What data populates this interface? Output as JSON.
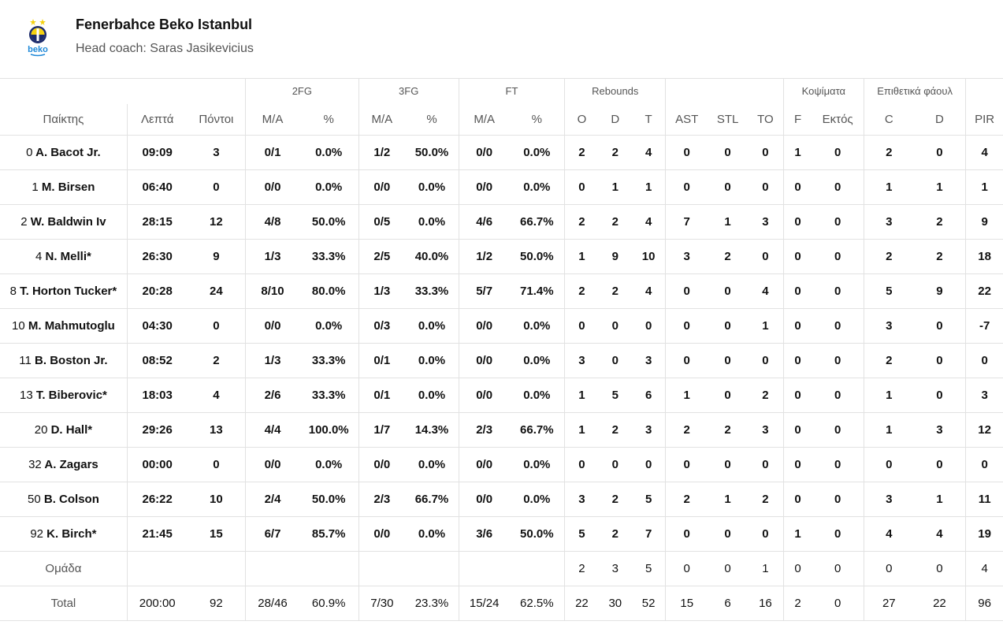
{
  "team": {
    "name": "Fenerbahce Beko Istanbul",
    "coach": "Head coach: Saras Jasikevicius",
    "logo_icon": "fenerbahce-beko-logo",
    "logo_text": "beko",
    "colors": {
      "navy": "#1b2a6b",
      "yellow": "#f5d10f",
      "beko_blue": "#1e88d8"
    }
  },
  "groups": {
    "fg2": "2FG",
    "fg3": "3FG",
    "ft": "FT",
    "rebounds": "Rebounds",
    "blocks": "Κοψίματα",
    "fouls": "Επιθετικά φάουλ"
  },
  "columns": {
    "player": "Παίκτης",
    "minutes": "Λεπτά",
    "points": "Πόντοι",
    "fg2_ma": "M/A",
    "fg2_pct": "%",
    "fg3_ma": "M/A",
    "fg3_pct": "%",
    "ft_ma": "M/A",
    "ft_pct": "%",
    "reb_o": "O",
    "reb_d": "D",
    "reb_t": "T",
    "ast": "AST",
    "stl": "STL",
    "to": "TO",
    "blk_f": "F",
    "blk_ag": "Εκτός",
    "fouls_c": "C",
    "fouls_d": "D",
    "pir": "PIR"
  },
  "rows": [
    {
      "num": "0",
      "name": "A. Bacot Jr.",
      "min": "09:09",
      "pts": "3",
      "fg2_ma": "0/1",
      "fg2_pct": "0.0%",
      "fg3_ma": "1/2",
      "fg3_pct": "50.0%",
      "ft_ma": "0/0",
      "ft_pct": "0.0%",
      "o": "2",
      "d": "2",
      "t": "4",
      "ast": "0",
      "stl": "0",
      "to": "0",
      "bf": "1",
      "ba": "0",
      "fc": "2",
      "fd": "0",
      "pir": "4"
    },
    {
      "num": "1",
      "name": "M. Birsen",
      "min": "06:40",
      "pts": "0",
      "fg2_ma": "0/0",
      "fg2_pct": "0.0%",
      "fg3_ma": "0/0",
      "fg3_pct": "0.0%",
      "ft_ma": "0/0",
      "ft_pct": "0.0%",
      "o": "0",
      "d": "1",
      "t": "1",
      "ast": "0",
      "stl": "0",
      "to": "0",
      "bf": "0",
      "ba": "0",
      "fc": "1",
      "fd": "1",
      "pir": "1"
    },
    {
      "num": "2",
      "name": "W. Baldwin Iv",
      "min": "28:15",
      "pts": "12",
      "fg2_ma": "4/8",
      "fg2_pct": "50.0%",
      "fg3_ma": "0/5",
      "fg3_pct": "0.0%",
      "ft_ma": "4/6",
      "ft_pct": "66.7%",
      "o": "2",
      "d": "2",
      "t": "4",
      "ast": "7",
      "stl": "1",
      "to": "3",
      "bf": "0",
      "ba": "0",
      "fc": "3",
      "fd": "2",
      "pir": "9"
    },
    {
      "num": "4",
      "name": "N. Melli*",
      "min": "26:30",
      "pts": "9",
      "fg2_ma": "1/3",
      "fg2_pct": "33.3%",
      "fg3_ma": "2/5",
      "fg3_pct": "40.0%",
      "ft_ma": "1/2",
      "ft_pct": "50.0%",
      "o": "1",
      "d": "9",
      "t": "10",
      "ast": "3",
      "stl": "2",
      "to": "0",
      "bf": "0",
      "ba": "0",
      "fc": "2",
      "fd": "2",
      "pir": "18"
    },
    {
      "num": "8",
      "name": "T. Horton Tucker*",
      "min": "20:28",
      "pts": "24",
      "fg2_ma": "8/10",
      "fg2_pct": "80.0%",
      "fg3_ma": "1/3",
      "fg3_pct": "33.3%",
      "ft_ma": "5/7",
      "ft_pct": "71.4%",
      "o": "2",
      "d": "2",
      "t": "4",
      "ast": "0",
      "stl": "0",
      "to": "4",
      "bf": "0",
      "ba": "0",
      "fc": "5",
      "fd": "9",
      "pir": "22"
    },
    {
      "num": "10",
      "name": "M. Mahmutoglu",
      "min": "04:30",
      "pts": "0",
      "fg2_ma": "0/0",
      "fg2_pct": "0.0%",
      "fg3_ma": "0/3",
      "fg3_pct": "0.0%",
      "ft_ma": "0/0",
      "ft_pct": "0.0%",
      "o": "0",
      "d": "0",
      "t": "0",
      "ast": "0",
      "stl": "0",
      "to": "1",
      "bf": "0",
      "ba": "0",
      "fc": "3",
      "fd": "0",
      "pir": "-7"
    },
    {
      "num": "11",
      "name": "B. Boston Jr.",
      "min": "08:52",
      "pts": "2",
      "fg2_ma": "1/3",
      "fg2_pct": "33.3%",
      "fg3_ma": "0/1",
      "fg3_pct": "0.0%",
      "ft_ma": "0/0",
      "ft_pct": "0.0%",
      "o": "3",
      "d": "0",
      "t": "3",
      "ast": "0",
      "stl": "0",
      "to": "0",
      "bf": "0",
      "ba": "0",
      "fc": "2",
      "fd": "0",
      "pir": "0"
    },
    {
      "num": "13",
      "name": "T. Biberovic*",
      "min": "18:03",
      "pts": "4",
      "fg2_ma": "2/6",
      "fg2_pct": "33.3%",
      "fg3_ma": "0/1",
      "fg3_pct": "0.0%",
      "ft_ma": "0/0",
      "ft_pct": "0.0%",
      "o": "1",
      "d": "5",
      "t": "6",
      "ast": "1",
      "stl": "0",
      "to": "2",
      "bf": "0",
      "ba": "0",
      "fc": "1",
      "fd": "0",
      "pir": "3"
    },
    {
      "num": "20",
      "name": "D. Hall*",
      "min": "29:26",
      "pts": "13",
      "fg2_ma": "4/4",
      "fg2_pct": "100.0%",
      "fg3_ma": "1/7",
      "fg3_pct": "14.3%",
      "ft_ma": "2/3",
      "ft_pct": "66.7%",
      "o": "1",
      "d": "2",
      "t": "3",
      "ast": "2",
      "stl": "2",
      "to": "3",
      "bf": "0",
      "ba": "0",
      "fc": "1",
      "fd": "3",
      "pir": "12"
    },
    {
      "num": "32",
      "name": "A. Zagars",
      "min": "00:00",
      "pts": "0",
      "fg2_ma": "0/0",
      "fg2_pct": "0.0%",
      "fg3_ma": "0/0",
      "fg3_pct": "0.0%",
      "ft_ma": "0/0",
      "ft_pct": "0.0%",
      "o": "0",
      "d": "0",
      "t": "0",
      "ast": "0",
      "stl": "0",
      "to": "0",
      "bf": "0",
      "ba": "0",
      "fc": "0",
      "fd": "0",
      "pir": "0"
    },
    {
      "num": "50",
      "name": "B. Colson",
      "min": "26:22",
      "pts": "10",
      "fg2_ma": "2/4",
      "fg2_pct": "50.0%",
      "fg3_ma": "2/3",
      "fg3_pct": "66.7%",
      "ft_ma": "0/0",
      "ft_pct": "0.0%",
      "o": "3",
      "d": "2",
      "t": "5",
      "ast": "2",
      "stl": "1",
      "to": "2",
      "bf": "0",
      "ba": "0",
      "fc": "3",
      "fd": "1",
      "pir": "11"
    },
    {
      "num": "92",
      "name": "K. Birch*",
      "min": "21:45",
      "pts": "15",
      "fg2_ma": "6/7",
      "fg2_pct": "85.7%",
      "fg3_ma": "0/0",
      "fg3_pct": "0.0%",
      "ft_ma": "3/6",
      "ft_pct": "50.0%",
      "o": "5",
      "d": "2",
      "t": "7",
      "ast": "0",
      "stl": "0",
      "to": "0",
      "bf": "1",
      "ba": "0",
      "fc": "4",
      "fd": "4",
      "pir": "19"
    }
  ],
  "team_row": {
    "label": "Ομάδα",
    "o": "2",
    "d": "3",
    "t": "5",
    "ast": "0",
    "stl": "0",
    "to": "1",
    "bf": "0",
    "ba": "0",
    "fc": "0",
    "fd": "0",
    "pir": "4"
  },
  "total_row": {
    "label": "Total",
    "min": "200:00",
    "pts": "92",
    "fg2_ma": "28/46",
    "fg2_pct": "60.9%",
    "fg3_ma": "7/30",
    "fg3_pct": "23.3%",
    "ft_ma": "15/24",
    "ft_pct": "62.5%",
    "o": "22",
    "d": "30",
    "t": "52",
    "ast": "15",
    "stl": "6",
    "to": "16",
    "bf": "2",
    "ba": "0",
    "fc": "27",
    "fd": "22",
    "pir": "96"
  }
}
